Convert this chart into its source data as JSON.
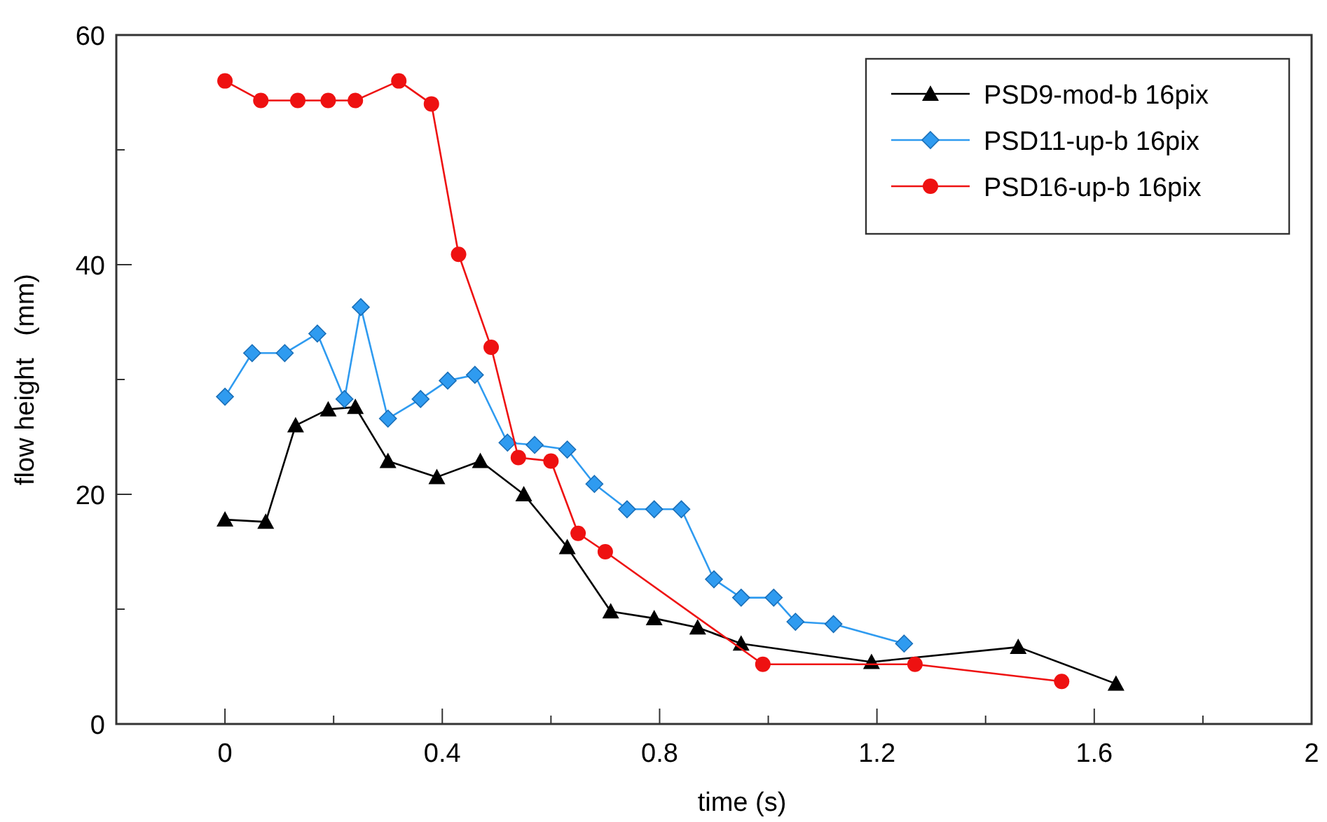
{
  "chart_data": {
    "type": "line",
    "xlabel": "time (s)",
    "ylabel": "flow height   (mm)",
    "xlim": [
      -0.2,
      2
    ],
    "xticks": [
      0,
      {
        "value": 0.2,
        "label": null
      },
      0.4,
      {
        "value": 0.6,
        "label": null
      },
      0.8,
      {
        "value": 1.0,
        "label": null
      },
      1.2,
      {
        "value": 1.4,
        "label": null
      },
      1.6,
      {
        "value": 1.8,
        "label": null
      },
      2
    ],
    "ylim": [
      0,
      60
    ],
    "yticks": [
      0,
      {
        "value": 10,
        "label": null
      },
      20,
      {
        "value": 30,
        "label": null
      },
      40,
      {
        "value": 50,
        "label": null
      },
      60
    ],
    "grid": false,
    "legend": "top right",
    "line_style": "solid",
    "series": [
      {
        "name": "PSD9-mod-b 16pix",
        "color": "#000000",
        "marker": "triangle",
        "x": [
          0,
          0.075,
          0.13,
          0.19,
          0.24,
          0.3,
          0.39,
          0.47,
          0.55,
          0.63,
          0.71,
          0.79,
          0.87,
          0.95,
          1.19,
          1.46,
          1.64
        ],
        "values": [
          17.8,
          17.6,
          26,
          27.4,
          27.6,
          22.9,
          21.5,
          22.9,
          20,
          15.4,
          9.8,
          9.2,
          8.4,
          7,
          5.4,
          6.7,
          3.5
        ]
      },
      {
        "name": "PSD11-up-b 16pix",
        "color": "#2f9bf0",
        "marker": "diamond",
        "x": [
          0,
          0.05,
          0.11,
          0.17,
          0.22,
          0.25,
          0.3,
          0.36,
          0.41,
          0.46,
          0.52,
          0.57,
          0.63,
          0.68,
          0.74,
          0.79,
          0.84,
          0.9,
          0.95,
          1.01,
          1.05,
          1.12,
          1.25
        ],
        "values": [
          28.5,
          32.3,
          32.3,
          34,
          28.3,
          36.3,
          26.6,
          28.3,
          29.9,
          30.4,
          24.5,
          24.3,
          23.9,
          20.9,
          18.7,
          18.7,
          18.7,
          12.6,
          11,
          11,
          8.9,
          8.7,
          7
        ]
      },
      {
        "name": "PSD16-up-b 16pix",
        "color": "#ee1111",
        "marker": "circle",
        "x": [
          0,
          0.066,
          0.134,
          0.19,
          0.24,
          0.32,
          0.38,
          0.43,
          0.49,
          0.54,
          0.6,
          0.65,
          0.7,
          0.99,
          1.27,
          1.54
        ],
        "values": [
          56,
          54.3,
          54.3,
          54.3,
          54.3,
          56,
          54,
          40.9,
          32.8,
          23.2,
          22.9,
          16.6,
          15,
          5.2,
          5.2,
          3.7
        ]
      }
    ]
  }
}
